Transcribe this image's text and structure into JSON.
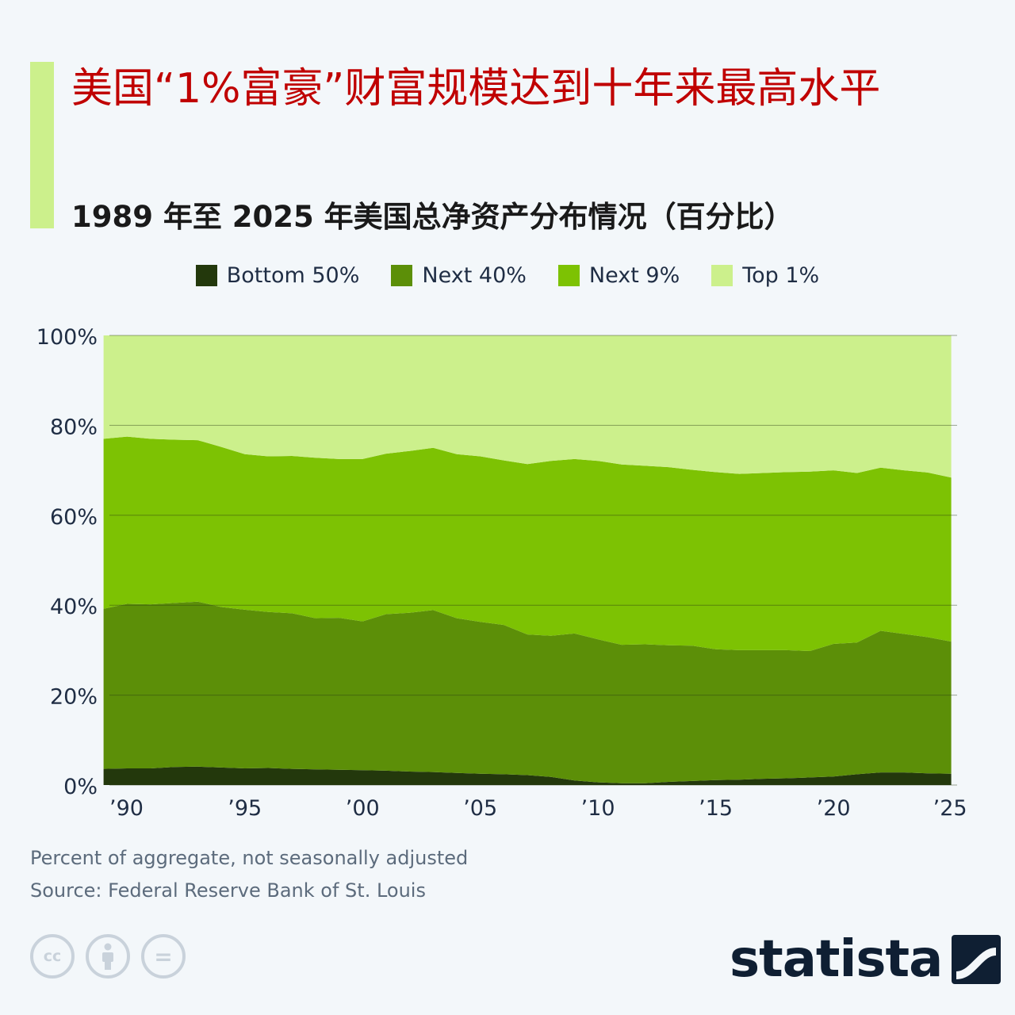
{
  "header": {
    "title": "美国“1%富豪”财富规模达到十年来最高水平",
    "subtitle": "1989 年至 2025 年美国总净资产分布情况（百分比）"
  },
  "colors": {
    "title": "#c00000",
    "accent_bar": "#ccf08c",
    "bottom_50": "#23380c",
    "next_40": "#5c8f08",
    "next_9": "#7dc203",
    "top_1": "#ccf08c",
    "gridline": "#2a3b14",
    "axis_text": "#1f2d44"
  },
  "footer": {
    "note": "Percent of aggregate, not seasonally adjusted",
    "source": "Source: Federal Reserve Bank of St. Louis",
    "logo_text": "statista",
    "license_icons": [
      "creative-commons-icon",
      "attribution-person-icon",
      "no-derivatives-icon"
    ],
    "cc_label": "cc",
    "nd_label": "="
  },
  "chart_data": {
    "type": "area",
    "stacked": true,
    "stacked_percent": true,
    "x": [
      1989,
      1990,
      1991,
      1992,
      1993,
      1994,
      1995,
      1996,
      1997,
      1998,
      1999,
      2000,
      2001,
      2002,
      2003,
      2004,
      2005,
      2006,
      2007,
      2008,
      2009,
      2010,
      2011,
      2012,
      2013,
      2014,
      2015,
      2016,
      2017,
      2018,
      2019,
      2020,
      2021,
      2022,
      2023,
      2024,
      2025
    ],
    "series": [
      {
        "name": "Bottom 50%",
        "color": "#23380c",
        "values": [
          3.6,
          3.7,
          3.7,
          4.0,
          4.1,
          3.9,
          3.7,
          3.8,
          3.6,
          3.5,
          3.4,
          3.3,
          3.2,
          3.0,
          2.9,
          2.7,
          2.5,
          2.4,
          2.2,
          1.8,
          1.0,
          0.6,
          0.4,
          0.4,
          0.7,
          0.9,
          1.1,
          1.2,
          1.4,
          1.5,
          1.7,
          1.9,
          2.4,
          2.8,
          2.8,
          2.6,
          2.5
        ]
      },
      {
        "name": "Next 40%",
        "color": "#5c8f08",
        "values": [
          35.6,
          36.6,
          36.5,
          36.5,
          36.7,
          35.7,
          35.3,
          34.7,
          34.6,
          33.6,
          33.8,
          33.1,
          34.8,
          35.3,
          36.0,
          34.4,
          33.8,
          33.2,
          31.3,
          31.4,
          32.7,
          31.8,
          30.8,
          30.9,
          30.4,
          30.1,
          29.1,
          28.8,
          28.6,
          28.5,
          28.1,
          29.5,
          29.3,
          31.5,
          30.8,
          30.3,
          29.4
        ]
      },
      {
        "name": "Next 9%",
        "color": "#7dc203",
        "values": [
          37.8,
          37.2,
          36.8,
          36.3,
          35.9,
          35.6,
          34.6,
          34.6,
          35.0,
          35.7,
          35.3,
          36.1,
          35.7,
          36.0,
          36.1,
          36.5,
          36.8,
          36.6,
          37.9,
          38.9,
          38.8,
          39.7,
          40.1,
          39.7,
          39.6,
          39.1,
          39.4,
          39.2,
          39.4,
          39.6,
          39.9,
          38.6,
          37.7,
          36.3,
          36.4,
          36.6,
          36.5
        ]
      },
      {
        "name": "Top 1%",
        "color": "#ccf08c",
        "values": [
          23.0,
          22.5,
          23.0,
          23.2,
          23.3,
          24.8,
          26.4,
          26.9,
          26.8,
          27.2,
          27.5,
          27.5,
          26.3,
          25.7,
          25.0,
          26.4,
          26.9,
          27.8,
          28.6,
          27.9,
          27.5,
          27.9,
          28.7,
          29.0,
          29.3,
          29.9,
          30.4,
          30.8,
          30.6,
          30.4,
          30.3,
          30.0,
          30.6,
          29.4,
          30.0,
          30.5,
          31.6
        ]
      }
    ],
    "ylim": [
      0,
      100
    ],
    "yticks": [
      0,
      20,
      40,
      60,
      80,
      100
    ],
    "ytick_labels": [
      "0%",
      "20%",
      "40%",
      "60%",
      "80%",
      "100%"
    ],
    "xticks": [
      1990,
      1995,
      2000,
      2005,
      2010,
      2015,
      2020,
      2025
    ],
    "xtick_labels": [
      "’90",
      "’95",
      "’00",
      "’05",
      "’10",
      "’15",
      "’20",
      "’25"
    ],
    "xlim": [
      1989.25,
      2025.25
    ],
    "grid": true,
    "legend_position": "top-center"
  }
}
